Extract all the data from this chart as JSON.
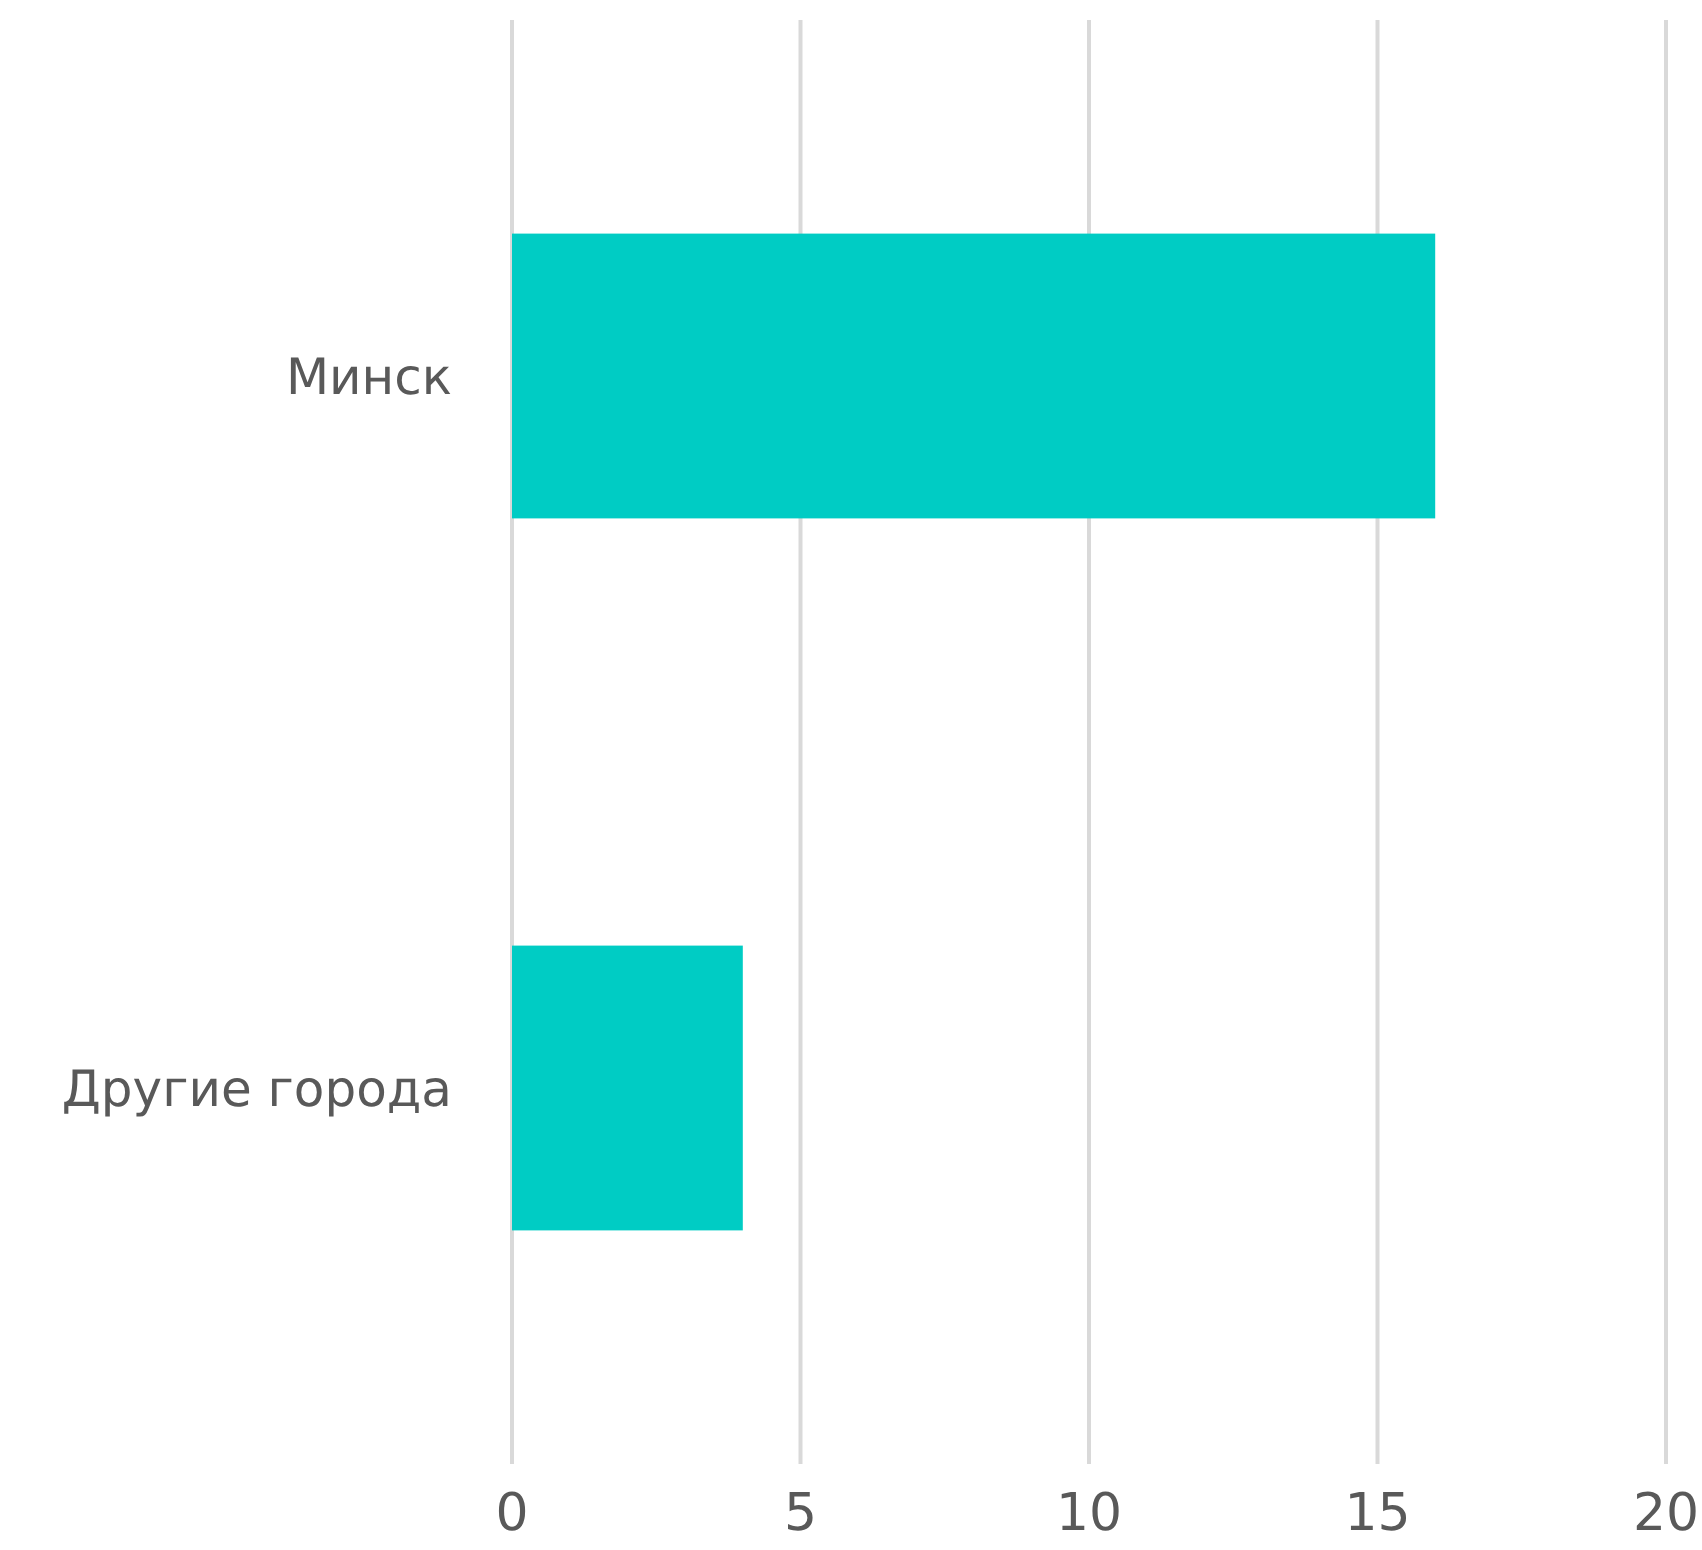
{
  "chart_data": {
    "type": "bar",
    "orientation": "horizontal",
    "categories": [
      "Минск",
      "Другие города"
    ],
    "values": [
      16,
      4
    ],
    "color": "#00ccc4",
    "xlim": [
      0,
      20
    ],
    "xticks": [
      0,
      5,
      10,
      15,
      20
    ],
    "grid": "x"
  }
}
